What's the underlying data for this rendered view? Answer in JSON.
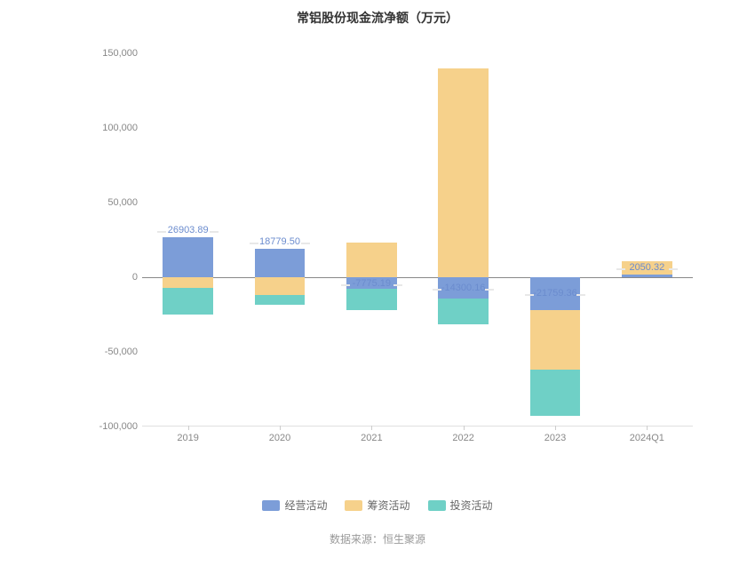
{
  "chart": {
    "type": "stacked-bar",
    "title": "常铝股份现金流净额（万元）",
    "background_color": "#ffffff",
    "title_fontsize": 14,
    "title_color": "#333333",
    "label_fontsize": 11,
    "axis_label_color": "#888888",
    "value_label_color": "#6b8cce",
    "categories": [
      "2019",
      "2020",
      "2021",
      "2022",
      "2023",
      "2024Q1"
    ],
    "ylim": [
      -100000,
      150000
    ],
    "ytick_step": 50000,
    "yticks": [
      "-100,000",
      "-50,000",
      "0",
      "50,000",
      "100,000",
      "150,000"
    ],
    "ytick_values": [
      -100000,
      -50000,
      0,
      50000,
      100000,
      150000
    ],
    "grid": false,
    "zero_line_color": "#888888",
    "bar_group_width": 0.55,
    "series": [
      {
        "name": "经营活动",
        "color": "#7c9dd8",
        "values": [
          26903.89,
          18779.5,
          -7775.19,
          -14300.16,
          -21759.36,
          2050.32
        ]
      },
      {
        "name": "筹资活动",
        "color": "#f6d18b",
        "values": [
          -7000,
          -12000,
          23000,
          140000,
          -40000,
          8500
        ]
      },
      {
        "name": "投资活动",
        "color": "#6fd0c6",
        "values": [
          -18000,
          -6500,
          -14000,
          -17000,
          -31000,
          0
        ]
      }
    ],
    "value_labels": [
      "26903.89",
      "18779.50",
      "-7775.19",
      "-14300.16",
      "-21759.36",
      "2050.32"
    ],
    "legend_position": "bottom",
    "source_prefix": "数据来源：",
    "source_name": "恒生聚源"
  }
}
